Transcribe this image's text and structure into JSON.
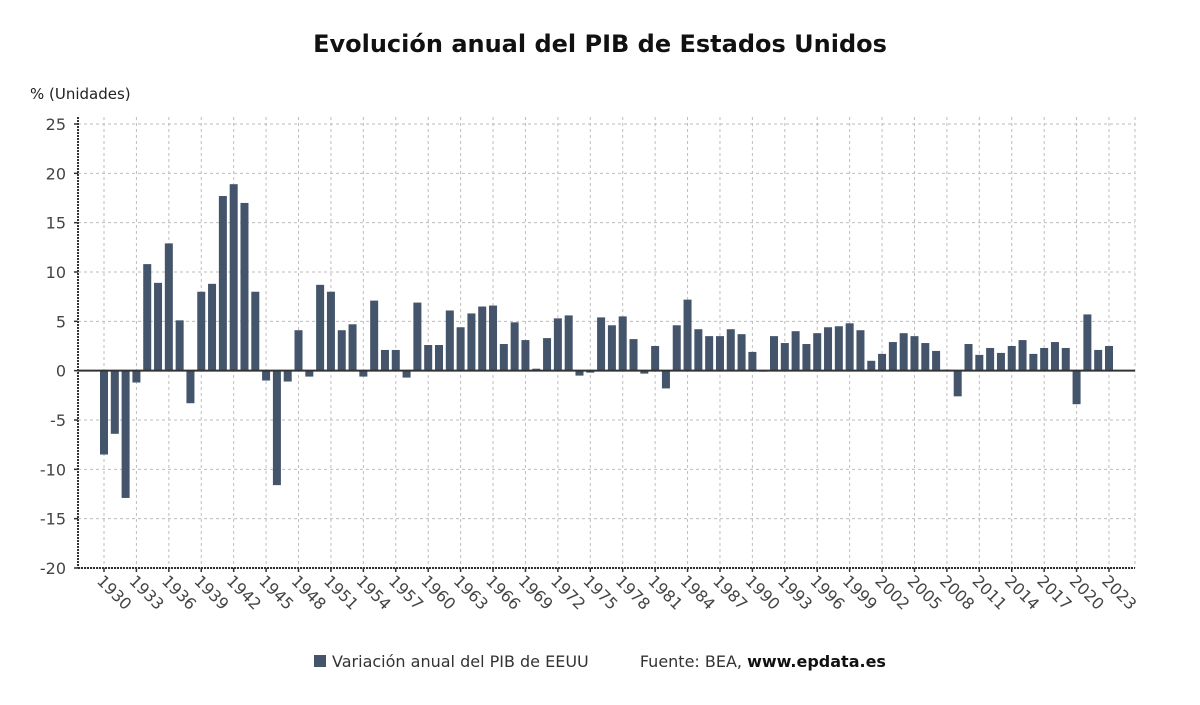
{
  "chart_data": {
    "type": "bar",
    "title": "Evolución anual del PIB de Estados Unidos",
    "ylabel": "% (Unidades)",
    "xlabel": "",
    "ylim": [
      -20,
      25
    ],
    "yticks": [
      25,
      20,
      15,
      10,
      5,
      0,
      -5,
      -10,
      -15,
      -20
    ],
    "xtick_labels": [
      "1930",
      "1933",
      "1936",
      "1939",
      "1942",
      "1945",
      "1948",
      "1951",
      "1954",
      "1957",
      "1960",
      "1963",
      "1966",
      "1969",
      "1972",
      "1975",
      "1978",
      "1981",
      "1984",
      "1987",
      "1990",
      "1993",
      "1996",
      "1999",
      "2002",
      "2005",
      "2008",
      "2011",
      "2014",
      "2017",
      "2020",
      "2023"
    ],
    "grid": true,
    "bar_color": "#44546a",
    "legend_position": "bottom",
    "series": [
      {
        "name": "Variación anual del PIB de EEUU",
        "x": [
          1930,
          1931,
          1932,
          1933,
          1934,
          1935,
          1936,
          1937,
          1938,
          1939,
          1940,
          1941,
          1942,
          1943,
          1944,
          1945,
          1946,
          1947,
          1948,
          1949,
          1950,
          1951,
          1952,
          1953,
          1954,
          1955,
          1956,
          1957,
          1958,
          1959,
          1960,
          1961,
          1962,
          1963,
          1964,
          1965,
          1966,
          1967,
          1968,
          1969,
          1970,
          1971,
          1972,
          1973,
          1974,
          1975,
          1976,
          1977,
          1978,
          1979,
          1980,
          1981,
          1982,
          1983,
          1984,
          1985,
          1986,
          1987,
          1988,
          1989,
          1990,
          1991,
          1992,
          1993,
          1994,
          1995,
          1996,
          1997,
          1998,
          1999,
          2000,
          2001,
          2002,
          2003,
          2004,
          2005,
          2006,
          2007,
          2008,
          2009,
          2010,
          2011,
          2012,
          2013,
          2014,
          2015,
          2016,
          2017,
          2018,
          2019,
          2020,
          2021,
          2022,
          2023
        ],
        "values": [
          -8.5,
          -6.4,
          -12.9,
          -1.2,
          10.8,
          8.9,
          12.9,
          5.1,
          -3.3,
          8.0,
          8.8,
          17.7,
          18.9,
          17.0,
          8.0,
          -1.0,
          -11.6,
          -1.1,
          4.1,
          -0.6,
          8.7,
          8.0,
          4.1,
          4.7,
          -0.6,
          7.1,
          2.1,
          2.1,
          -0.7,
          6.9,
          2.6,
          2.6,
          6.1,
          4.4,
          5.8,
          6.5,
          6.6,
          2.7,
          4.9,
          3.1,
          0.2,
          3.3,
          5.3,
          5.6,
          -0.5,
          -0.2,
          5.4,
          4.6,
          5.5,
          3.2,
          -0.3,
          2.5,
          -1.8,
          4.6,
          7.2,
          4.2,
          3.5,
          3.5,
          4.2,
          3.7,
          1.9,
          -0.1,
          3.5,
          2.8,
          4.0,
          2.7,
          3.8,
          4.4,
          4.5,
          4.8,
          4.1,
          1.0,
          1.7,
          2.9,
          3.8,
          3.5,
          2.8,
          2.0,
          0.1,
          -2.6,
          2.7,
          1.6,
          2.3,
          1.8,
          2.5,
          3.1,
          1.7,
          2.3,
          2.9,
          2.3,
          -3.4,
          5.7,
          2.1,
          2.5
        ]
      }
    ],
    "source_label": "Fuente: BEA, ",
    "source_site": "www.epdata.es"
  }
}
